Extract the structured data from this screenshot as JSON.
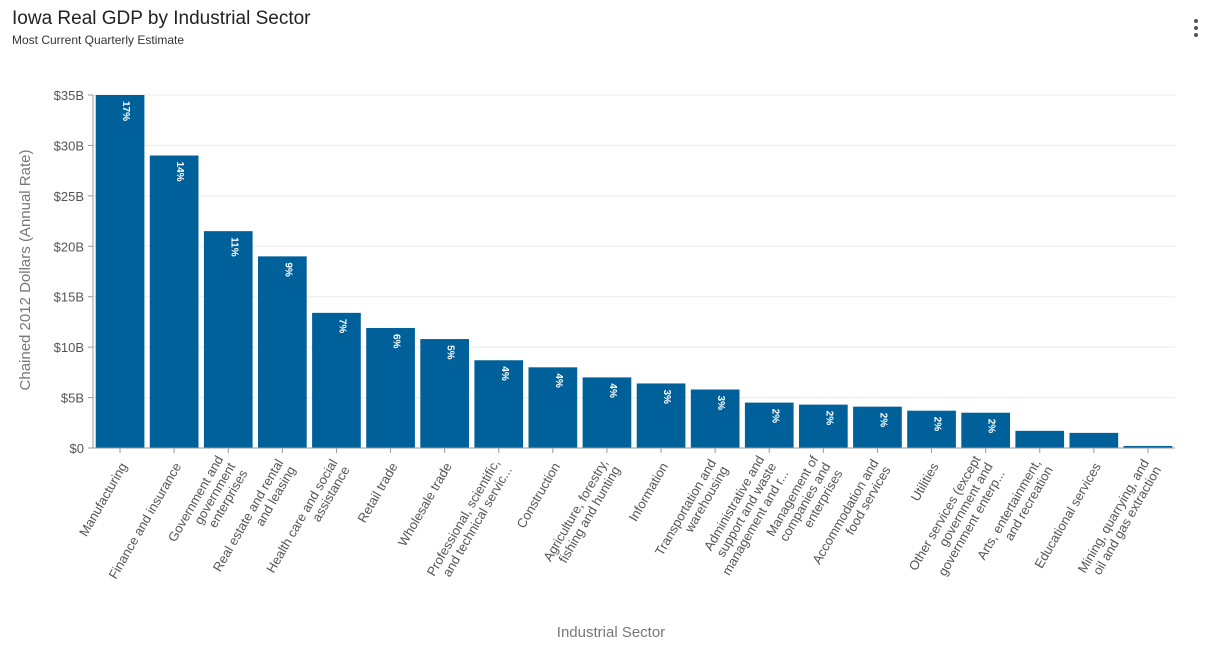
{
  "chart_data": {
    "type": "bar",
    "title": "Iowa Real GDP by Industrial Sector",
    "subtitle": "Most Current Quarterly Estimate",
    "x_label": "Industrial Sector",
    "y_label": "Chained 2012 Dollars (Annual Rate)",
    "categories": [
      "Manufacturing",
      "Finance and insurance",
      "Government and\ngovernment\nenterprises",
      "Real estate and rental\nand leasing",
      "Health care and social\nassistance",
      "Retail trade",
      "Wholesale trade",
      "Professional, scientific,\nand technical servic...",
      "Construction",
      "Agriculture, forestry,\nfishing and hunting",
      "Information",
      "Transportation and\nwarehousing",
      "Administrative and\nsupport and waste\nmanagement and r...",
      "Management of\ncompanies and\nenterprises",
      "Accommodation and\nfood services",
      "Utilities",
      "Other services (except\ngovernment and\ngovernment enterp...",
      "Arts, entertainment,\nand recreation",
      "Educational services",
      "Mining, quarrying, and\noil and gas extraction"
    ],
    "values": [
      35.0,
      29.0,
      21.5,
      19.0,
      13.4,
      11.9,
      10.8,
      8.7,
      8.0,
      7.0,
      6.4,
      5.8,
      4.5,
      4.3,
      4.1,
      3.7,
      3.5,
      1.7,
      1.5,
      0.2
    ],
    "share_labels": [
      "17%",
      "14%",
      "11%",
      "9%",
      "7%",
      "6%",
      "5%",
      "4%",
      "4%",
      "4%",
      "3%",
      "3%",
      "2%",
      "2%",
      "2%",
      "2%",
      "2%",
      null,
      null,
      null
    ],
    "color": "#00609a",
    "ylim": [
      0,
      35
    ],
    "yticks": [
      {
        "value": 0,
        "label": "$0"
      },
      {
        "value": 5,
        "label": "$5B"
      },
      {
        "value": 10,
        "label": "$10B"
      },
      {
        "value": 15,
        "label": "$15B"
      },
      {
        "value": 20,
        "label": "$20B"
      },
      {
        "value": 25,
        "label": "$25B"
      },
      {
        "value": 30,
        "label": "$30B"
      },
      {
        "value": 35,
        "label": "$35B"
      }
    ],
    "grid": true
  }
}
